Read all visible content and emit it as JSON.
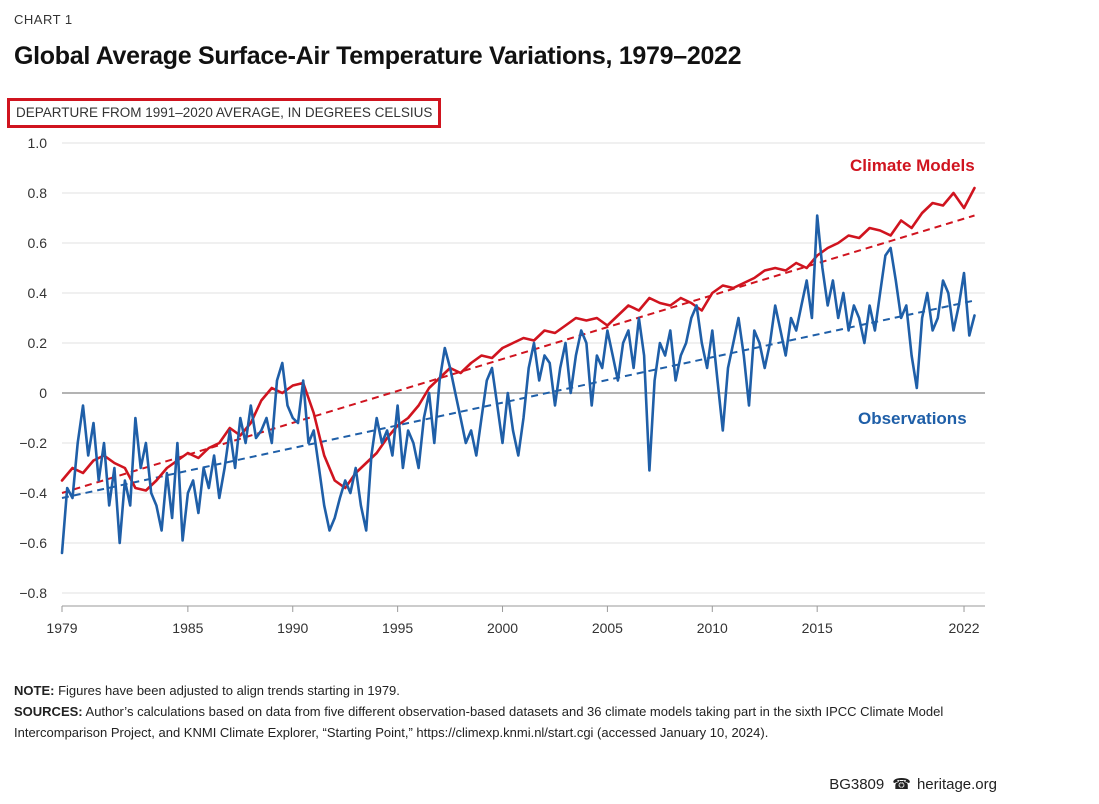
{
  "header": {
    "chart_label": "CHART 1",
    "title": "Global Average Surface-Air Temperature Variations, 1979–2022",
    "unit_label": "DEPARTURE FROM 1991–2020 AVERAGE, IN DEGREES CELSIUS"
  },
  "chart_data": {
    "type": "line",
    "title": "Global Average Surface-Air Temperature Variations, 1979–2022",
    "ylabel": "DEPARTURE FROM 1991–2020 AVERAGE, IN DEGREES CELSIUS",
    "xlabel": "",
    "xlim": [
      1979,
      2023
    ],
    "ylim": [
      -0.8,
      1.0
    ],
    "yticks": [
      1.0,
      0.8,
      0.6,
      0.4,
      0.2,
      0,
      -0.2,
      -0.4,
      -0.6,
      -0.8
    ],
    "ytick_labels": [
      "1.0",
      "0.8",
      "0.6",
      "0.4",
      "0.2",
      "0",
      "−0.2",
      "−0.4",
      "−0.6",
      "−0.8"
    ],
    "xticks": [
      1979,
      1985,
      1990,
      1995,
      2000,
      2005,
      2010,
      2015,
      2022
    ],
    "xtick_labels": [
      "1979",
      "1985",
      "1990",
      "1995",
      "2000",
      "2005",
      "2010",
      "2015",
      "2022"
    ],
    "grid": true,
    "series": [
      {
        "name": "Climate Models",
        "color": "#d0141f",
        "x": [
          1979.0,
          1979.5,
          1980.0,
          1980.5,
          1981.0,
          1981.5,
          1982.0,
          1982.5,
          1983.0,
          1983.5,
          1984.0,
          1984.5,
          1985.0,
          1985.5,
          1986.0,
          1986.5,
          1987.0,
          1987.5,
          1988.0,
          1988.5,
          1989.0,
          1989.5,
          1990.0,
          1990.5,
          1991.0,
          1991.5,
          1992.0,
          1992.5,
          1993.0,
          1993.5,
          1994.0,
          1994.5,
          1995.0,
          1995.5,
          1996.0,
          1996.5,
          1997.0,
          1997.5,
          1998.0,
          1998.5,
          1999.0,
          1999.5,
          2000.0,
          2000.5,
          2001.0,
          2001.5,
          2002.0,
          2002.5,
          2003.0,
          2003.5,
          2004.0,
          2004.5,
          2005.0,
          2005.5,
          2006.0,
          2006.5,
          2007.0,
          2007.5,
          2008.0,
          2008.5,
          2009.0,
          2009.5,
          2010.0,
          2010.5,
          2011.0,
          2011.5,
          2012.0,
          2012.5,
          2013.0,
          2013.5,
          2014.0,
          2014.5,
          2015.0,
          2015.5,
          2016.0,
          2016.5,
          2017.0,
          2017.5,
          2018.0,
          2018.5,
          2019.0,
          2019.5,
          2020.0,
          2020.5,
          2021.0,
          2021.5,
          2022.0,
          2022.5
        ],
        "y": [
          -0.35,
          -0.3,
          -0.32,
          -0.27,
          -0.25,
          -0.28,
          -0.3,
          -0.38,
          -0.39,
          -0.35,
          -0.3,
          -0.27,
          -0.24,
          -0.26,
          -0.22,
          -0.2,
          -0.14,
          -0.17,
          -0.12,
          -0.03,
          0.02,
          0.0,
          0.03,
          0.04,
          -0.08,
          -0.25,
          -0.35,
          -0.38,
          -0.32,
          -0.28,
          -0.24,
          -0.18,
          -0.13,
          -0.1,
          -0.05,
          0.02,
          0.06,
          0.1,
          0.08,
          0.12,
          0.15,
          0.14,
          0.18,
          0.2,
          0.22,
          0.21,
          0.25,
          0.24,
          0.27,
          0.3,
          0.29,
          0.3,
          0.27,
          0.31,
          0.35,
          0.33,
          0.38,
          0.36,
          0.35,
          0.38,
          0.36,
          0.33,
          0.4,
          0.43,
          0.42,
          0.44,
          0.46,
          0.49,
          0.5,
          0.49,
          0.52,
          0.5,
          0.55,
          0.58,
          0.6,
          0.63,
          0.62,
          0.66,
          0.65,
          0.63,
          0.69,
          0.66,
          0.72,
          0.76,
          0.75,
          0.8,
          0.74,
          0.82
        ]
      },
      {
        "name": "Observations",
        "color": "#1f5fa8",
        "x": [
          1979.0,
          1979.25,
          1979.5,
          1979.75,
          1980.0,
          1980.25,
          1980.5,
          1980.75,
          1981.0,
          1981.25,
          1981.5,
          1981.75,
          1982.0,
          1982.25,
          1982.5,
          1982.75,
          1983.0,
          1983.25,
          1983.5,
          1983.75,
          1984.0,
          1984.25,
          1984.5,
          1984.75,
          1985.0,
          1985.25,
          1985.5,
          1985.75,
          1986.0,
          1986.25,
          1986.5,
          1986.75,
          1987.0,
          1987.25,
          1987.5,
          1987.75,
          1988.0,
          1988.25,
          1988.5,
          1988.75,
          1989.0,
          1989.25,
          1989.5,
          1989.75,
          1990.0,
          1990.25,
          1990.5,
          1990.75,
          1991.0,
          1991.25,
          1991.5,
          1991.75,
          1992.0,
          1992.25,
          1992.5,
          1992.75,
          1993.0,
          1993.25,
          1993.5,
          1993.75,
          1994.0,
          1994.25,
          1994.5,
          1994.75,
          1995.0,
          1995.25,
          1995.5,
          1995.75,
          1996.0,
          1996.25,
          1996.5,
          1996.75,
          1997.0,
          1997.25,
          1997.5,
          1997.75,
          1998.0,
          1998.25,
          1998.5,
          1998.75,
          1999.0,
          1999.25,
          1999.5,
          1999.75,
          2000.0,
          2000.25,
          2000.5,
          2000.75,
          2001.0,
          2001.25,
          2001.5,
          2001.75,
          2002.0,
          2002.25,
          2002.5,
          2002.75,
          2003.0,
          2003.25,
          2003.5,
          2003.75,
          2004.0,
          2004.25,
          2004.5,
          2004.75,
          2005.0,
          2005.25,
          2005.5,
          2005.75,
          2006.0,
          2006.25,
          2006.5,
          2006.75,
          2007.0,
          2007.25,
          2007.5,
          2007.75,
          2008.0,
          2008.25,
          2008.5,
          2008.75,
          2009.0,
          2009.25,
          2009.5,
          2009.75,
          2010.0,
          2010.25,
          2010.5,
          2010.75,
          2011.0,
          2011.25,
          2011.5,
          2011.75,
          2012.0,
          2012.25,
          2012.5,
          2012.75,
          2013.0,
          2013.25,
          2013.5,
          2013.75,
          2014.0,
          2014.25,
          2014.5,
          2014.75,
          2015.0,
          2015.25,
          2015.5,
          2015.75,
          2016.0,
          2016.25,
          2016.5,
          2016.75,
          2017.0,
          2017.25,
          2017.5,
          2017.75,
          2018.0,
          2018.25,
          2018.5,
          2018.75,
          2019.0,
          2019.25,
          2019.5,
          2019.75,
          2020.0,
          2020.25,
          2020.5,
          2020.75,
          2021.0,
          2021.25,
          2021.5,
          2021.75,
          2022.0,
          2022.25,
          2022.5
        ],
        "y": [
          -0.64,
          -0.38,
          -0.42,
          -0.2,
          -0.05,
          -0.25,
          -0.12,
          -0.35,
          -0.2,
          -0.45,
          -0.3,
          -0.6,
          -0.35,
          -0.45,
          -0.1,
          -0.3,
          -0.2,
          -0.4,
          -0.45,
          -0.55,
          -0.32,
          -0.5,
          -0.2,
          -0.59,
          -0.4,
          -0.35,
          -0.48,
          -0.3,
          -0.38,
          -0.25,
          -0.42,
          -0.3,
          -0.15,
          -0.3,
          -0.1,
          -0.2,
          -0.05,
          -0.18,
          -0.15,
          -0.1,
          -0.2,
          0.05,
          0.12,
          -0.05,
          -0.1,
          -0.12,
          0.05,
          -0.2,
          -0.15,
          -0.3,
          -0.45,
          -0.55,
          -0.5,
          -0.42,
          -0.35,
          -0.4,
          -0.3,
          -0.45,
          -0.55,
          -0.25,
          -0.1,
          -0.2,
          -0.15,
          -0.25,
          -0.05,
          -0.3,
          -0.15,
          -0.2,
          -0.3,
          -0.1,
          0.0,
          -0.2,
          0.05,
          0.18,
          0.1,
          0.0,
          -0.1,
          -0.2,
          -0.15,
          -0.25,
          -0.1,
          0.05,
          0.1,
          -0.05,
          -0.2,
          0.0,
          -0.15,
          -0.25,
          -0.1,
          0.1,
          0.2,
          0.05,
          0.15,
          0.12,
          -0.05,
          0.1,
          0.2,
          0.0,
          0.15,
          0.25,
          0.2,
          -0.05,
          0.15,
          0.1,
          0.25,
          0.15,
          0.05,
          0.2,
          0.25,
          0.1,
          0.3,
          0.15,
          -0.31,
          0.05,
          0.2,
          0.15,
          0.25,
          0.05,
          0.15,
          0.2,
          0.3,
          0.35,
          0.2,
          0.1,
          0.25,
          0.05,
          -0.15,
          0.1,
          0.2,
          0.3,
          0.15,
          -0.05,
          0.25,
          0.2,
          0.1,
          0.2,
          0.35,
          0.25,
          0.15,
          0.3,
          0.25,
          0.35,
          0.45,
          0.3,
          0.71,
          0.5,
          0.35,
          0.45,
          0.3,
          0.4,
          0.25,
          0.35,
          0.3,
          0.2,
          0.35,
          0.25,
          0.4,
          0.55,
          0.58,
          0.45,
          0.3,
          0.35,
          0.15,
          0.02,
          0.3,
          0.4,
          0.25,
          0.3,
          0.45,
          0.4,
          0.25,
          0.35,
          0.48,
          0.23,
          0.31
        ]
      }
    ],
    "trendlines": [
      {
        "name": "Climate Models trend",
        "color": "#d0141f",
        "x": [
          1979,
          2022.5
        ],
        "y": [
          -0.4,
          0.71
        ],
        "style": "dashed"
      },
      {
        "name": "Observations trend",
        "color": "#1f5fa8",
        "x": [
          1979,
          2022.5
        ],
        "y": [
          -0.42,
          0.37
        ],
        "style": "dashed"
      }
    ],
    "annotations": [
      {
        "text": "Climate Models",
        "series": "Climate Models"
      },
      {
        "text": "Observations",
        "series": "Observations"
      }
    ]
  },
  "notes": {
    "note_label": "NOTE:",
    "note_text": " Figures have been adjusted to align trends starting in 1979.",
    "sources_label": "SOURCES:",
    "sources_text": " Author’s calculations based on data from five different observation-based datasets and 36 climate models taking part in the sixth IPCC Climate Model Intercomparison Project, and KNMI Climate Explorer, “Starting Point,” https://climexp.knmi.nl/start.cgi (accessed January 10, 2024)."
  },
  "footer": {
    "report_id": "BG3809",
    "bell_icon": "☎",
    "site": "heritage.org"
  }
}
